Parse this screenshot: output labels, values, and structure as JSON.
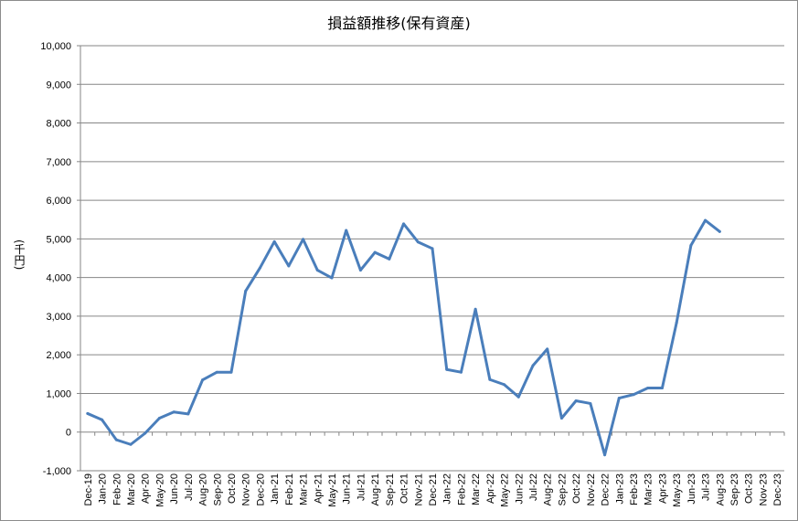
{
  "chart_data": {
    "type": "line",
    "title": "損益額推移(保有資産)",
    "ylabel": "(千円)",
    "xlabel": "",
    "ylim": [
      -1000,
      10000
    ],
    "yticks": [
      -1000,
      0,
      1000,
      2000,
      3000,
      4000,
      5000,
      6000,
      7000,
      8000,
      9000,
      10000
    ],
    "ytick_labels": [
      "-1,000",
      "0",
      "1,000",
      "2,000",
      "3,000",
      "4,000",
      "5,000",
      "6,000",
      "7,000",
      "8,000",
      "9,000",
      "10,000"
    ],
    "grid": true,
    "line_color": "#4a7ebb",
    "categories": [
      "Dec-19",
      "Jan-20",
      "Feb-20",
      "Mar-20",
      "Apr-20",
      "May-20",
      "Jun-20",
      "Jul-20",
      "Aug-20",
      "Sep-20",
      "Oct-20",
      "Nov-20",
      "Dec-20",
      "Jan-21",
      "Feb-21",
      "Mar-21",
      "Apr-21",
      "May-21",
      "Jun-21",
      "Jul-21",
      "Aug-21",
      "Sep-21",
      "Oct-21",
      "Nov-21",
      "Dec-21",
      "Jan-22",
      "Feb-22",
      "Mar-22",
      "Apr-22",
      "May-22",
      "Jun-22",
      "Jul-22",
      "Aug-22",
      "Sep-22",
      "Oct-22",
      "Nov-22",
      "Dec-22",
      "Jan-23",
      "Feb-23",
      "Mar-23",
      "Apr-23",
      "May-23",
      "Jun-23",
      "Jul-23",
      "Aug-23",
      "Sep-23",
      "Oct-23",
      "Nov-23",
      "Dec-23"
    ],
    "values": [
      480,
      320,
      -200,
      -320,
      -30,
      360,
      520,
      470,
      1350,
      1550,
      1550,
      3650,
      4250,
      4930,
      4300,
      4990,
      4190,
      3990,
      5220,
      4190,
      4650,
      4480,
      5390,
      4920,
      4750,
      1620,
      1550,
      3180,
      1360,
      1230,
      910,
      1720,
      2150,
      360,
      810,
      740,
      -590,
      880,
      970,
      1140,
      1140,
      2830,
      4830,
      5480,
      5190,
      null,
      null,
      null,
      null
    ]
  }
}
